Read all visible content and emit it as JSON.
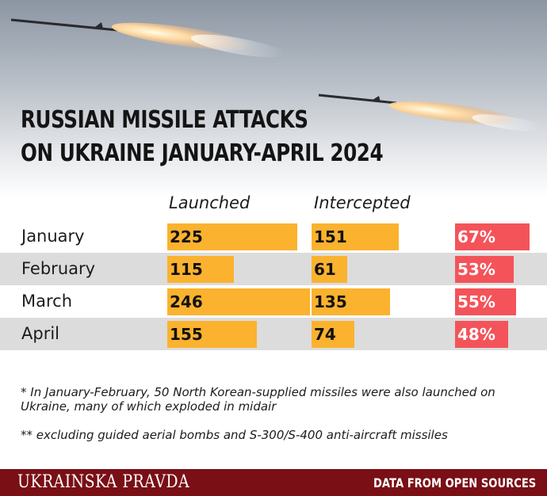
{
  "title": {
    "line1": "RUSSIAN MISSILE ATTACKS",
    "line2": "ON UKRAINE JANUARY-APRIL 2024"
  },
  "chart_data": {
    "type": "bar",
    "categories": [
      "January",
      "February",
      "March",
      "April"
    ],
    "series": [
      {
        "name": "Launched",
        "values": [
          225,
          115,
          246,
          155
        ],
        "color": "#fbb22e"
      },
      {
        "name": "Intercepted",
        "values": [
          151,
          61,
          135,
          74
        ],
        "color": "#fbb22e"
      },
      {
        "name": "",
        "values": [
          67,
          53,
          55,
          48
        ],
        "labels": [
          "67%",
          "53%",
          "55%",
          "48%"
        ],
        "color": "#f4535a"
      }
    ],
    "column_headers": [
      "Launched",
      "Intercepted"
    ]
  },
  "footnotes": [
    "* In January-February, 50 North Korean-supplied missiles were also launched on Ukraine, many of which exploded in midair",
    "** excluding guided aerial bombs and S-300/S-400 anti-aircraft missiles"
  ],
  "footer": {
    "logo": "UKRAINSKA PRAVDA",
    "source": "DATA FROM OPEN SOURCES"
  },
  "colors": {
    "bar": "#fbb22e",
    "percent": "#f4535a",
    "footer": "#7a0f16",
    "alt_row": "#dcdcdc"
  }
}
